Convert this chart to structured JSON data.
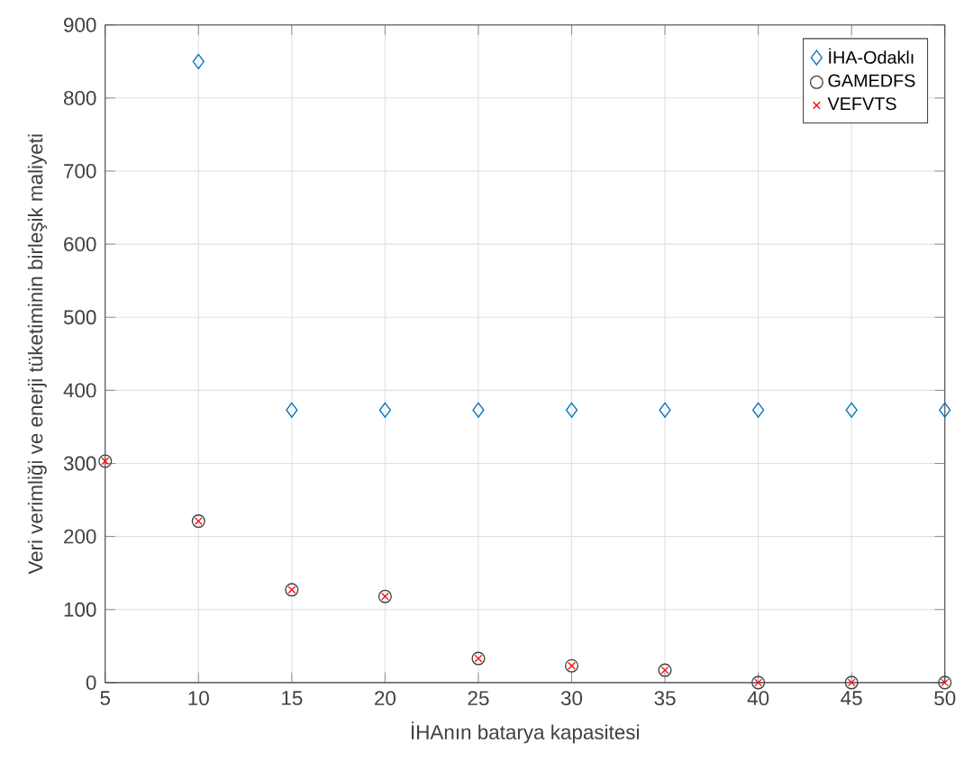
{
  "chart_data": {
    "type": "scatter",
    "xlabel": "İHAnın batarya kapasitesi",
    "ylabel": "Veri verimliği ve enerji tüketiminin birleşik maliyeti",
    "x": [
      5,
      10,
      15,
      20,
      25,
      30,
      35,
      40,
      45,
      50
    ],
    "series": [
      {
        "name": "İHA-Odaklı",
        "color": "#0072bd",
        "marker": "diamond",
        "values": [
          null,
          850,
          373,
          373,
          373,
          373,
          373,
          373,
          373,
          373
        ]
      },
      {
        "name": "GAMEDFS",
        "color": "#404040",
        "marker": "circle",
        "values": [
          303,
          221,
          127,
          118,
          33,
          23,
          17,
          0,
          0,
          0
        ]
      },
      {
        "name": "VEFVTS",
        "color": "#ff0000",
        "marker": "cross",
        "values": [
          303,
          221,
          127,
          118,
          33,
          23,
          17,
          0,
          0,
          0
        ]
      }
    ],
    "xlim": [
      5,
      50
    ],
    "ylim": [
      0,
      900
    ],
    "xticks": [
      5,
      10,
      15,
      20,
      25,
      30,
      35,
      40,
      45,
      50
    ],
    "yticks": [
      0,
      100,
      200,
      300,
      400,
      500,
      600,
      700,
      800,
      900
    ],
    "grid": true,
    "legend": "top right"
  }
}
